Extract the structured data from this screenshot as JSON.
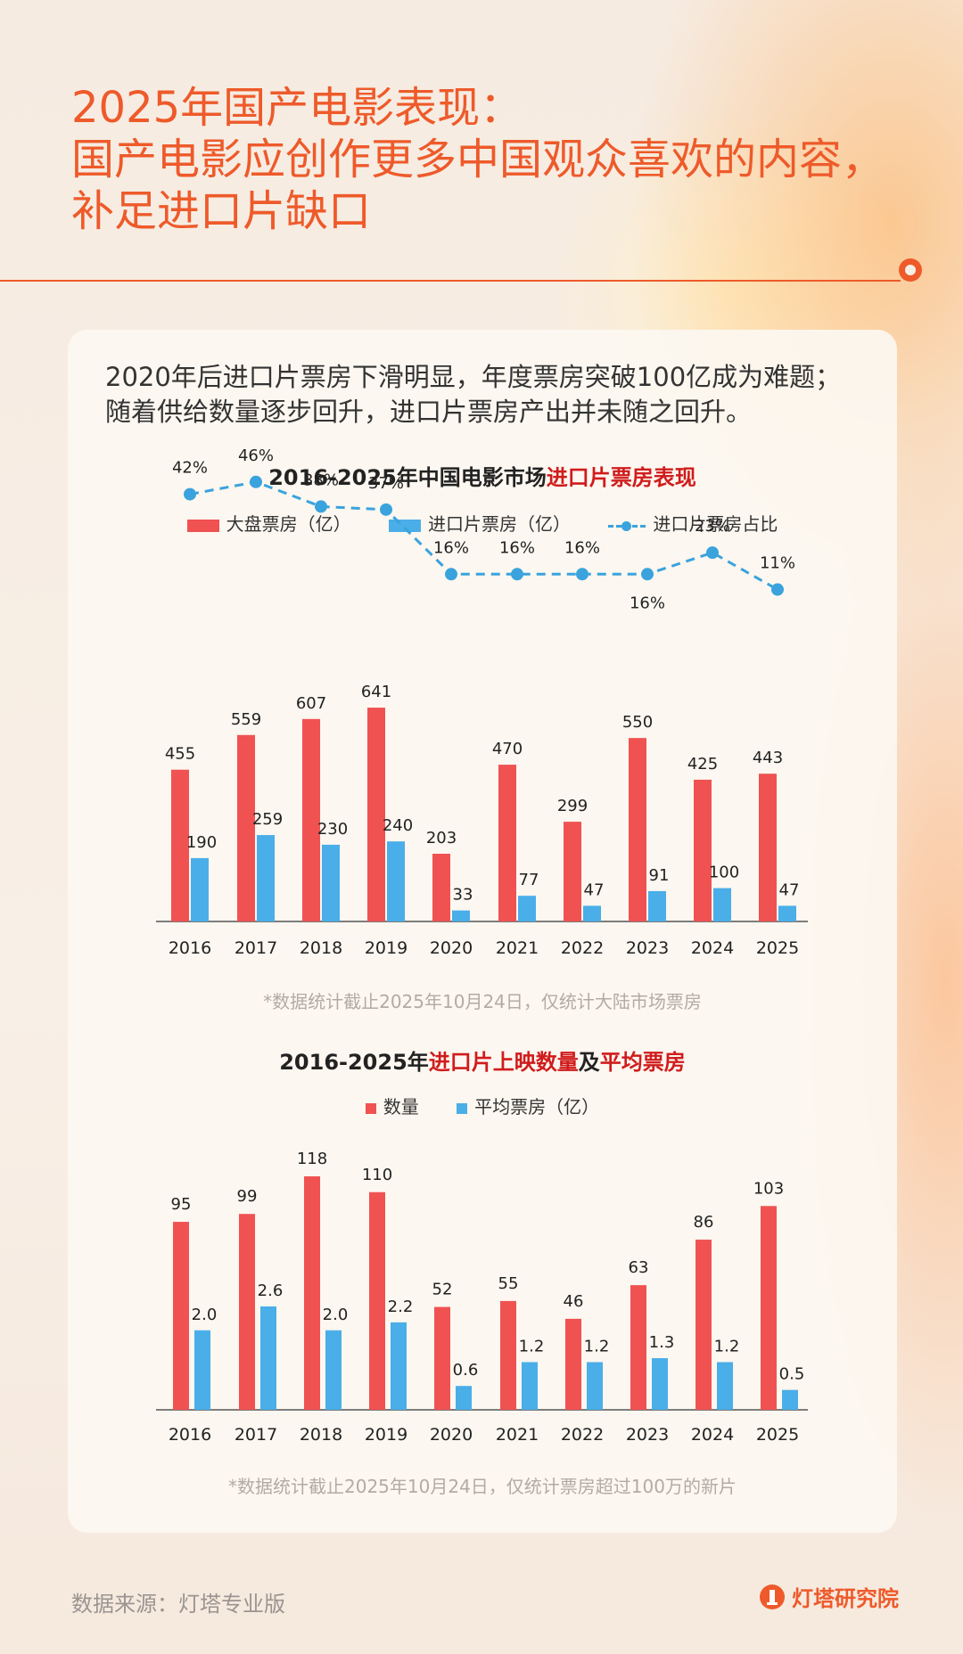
{
  "page": {
    "title_lines": [
      "2025年国产电影表现：",
      "国产电影应创作更多中国观众喜欢的内容，",
      "补足进口片缺口"
    ],
    "intro_lines": [
      "2020年后进口片票房下滑明显，年度票房突破100亿成为难题；",
      "随着供给数量逐步回升，进口片票房产出并未随之回升。"
    ],
    "footer_source": "数据来源：灯塔专业版",
    "brand": "灯塔研究院",
    "accent": "#ee5a2a"
  },
  "chart1_title": {
    "prefix": "2016-2025年中国电影市场",
    "highlight": "进口片票房表现"
  },
  "chart2_title": {
    "prefix": "2016-2025年",
    "highlight1": "进口片上映数量",
    "mid": "及",
    "highlight2": "平均票房"
  },
  "chart_data": [
    {
      "type": "bar",
      "title": "2016-2025年中国电影市场进口片票房表现",
      "categories": [
        "2016",
        "2017",
        "2018",
        "2019",
        "2020",
        "2021",
        "2022",
        "2023",
        "2024",
        "2025"
      ],
      "series": [
        {
          "name": "大盘票房（亿）",
          "color": "#f05252",
          "values": [
            455,
            559,
            607,
            641,
            203,
            470,
            299,
            550,
            425,
            443
          ]
        },
        {
          "name": "进口片票房（亿）",
          "color": "#4aaee8",
          "values": [
            190,
            259,
            230,
            240,
            33,
            77,
            47,
            91,
            100,
            47
          ]
        }
      ],
      "line_series": {
        "name": "进口片票房占比",
        "color": "#3aa3dd",
        "values": [
          42,
          46,
          38,
          37,
          16,
          16,
          16,
          16,
          23,
          11
        ],
        "labels": [
          "42%",
          "46%",
          "38%",
          "37%",
          "16%",
          "16%",
          "16%",
          "16%",
          "23%",
          "11%"
        ]
      },
      "note": "*数据统计截止2025年10月24日，仅统计大陆市场票房"
    },
    {
      "type": "bar",
      "title": "2016-2025年进口片上映数量及平均票房",
      "categories": [
        "2016",
        "2017",
        "2018",
        "2019",
        "2020",
        "2021",
        "2022",
        "2023",
        "2024",
        "2025"
      ],
      "series": [
        {
          "name": "数量",
          "color": "#f05252",
          "values": [
            95,
            99,
            118,
            110,
            52,
            55,
            46,
            63,
            86,
            103
          ]
        },
        {
          "name": "平均票房（亿）",
          "color": "#4aaee8",
          "values": [
            2.0,
            2.6,
            2.0,
            2.2,
            0.6,
            1.2,
            1.2,
            1.3,
            1.2,
            0.5
          ],
          "labels": [
            "2.0",
            "2.6",
            "2.0",
            "2.2",
            "0.6",
            "1.2",
            "1.2",
            "1.3",
            "1.2",
            "0.5"
          ]
        }
      ],
      "note": "*数据统计截止2025年10月24日，仅统计票房超过100万的新片"
    }
  ]
}
